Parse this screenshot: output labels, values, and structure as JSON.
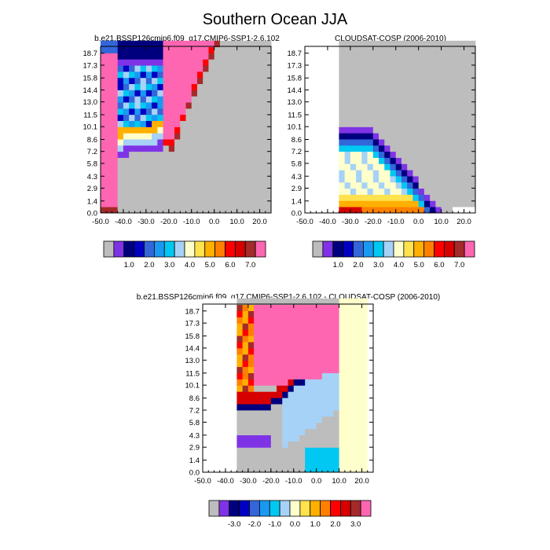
{
  "figure_title": "Southern Ocean JJA",
  "colors": {
    "missing": "#bdbdbd",
    "frame": "#000000",
    "palette": [
      "#7f33e6",
      "#00007f",
      "#0000c2",
      "#3366d9",
      "#1a99f2",
      "#00c8f2",
      "#a6d2f7",
      "#ffffcc",
      "#ffe24d",
      "#ffb000",
      "#ff8000",
      "#ff0000",
      "#d60000",
      "#a52a2a",
      "#ff66b2"
    ]
  },
  "chart_data": [
    {
      "id": "model",
      "type": "heatmap",
      "title": "b.e21.BSSP126cmip6.f09_g17.CMIP6-SSP1-2.6.102",
      "x_ticks": [
        "-50.0",
        "-40.0",
        "-30.0",
        "-20.0",
        "-10.0",
        "0.0",
        "10.0",
        "20.0"
      ],
      "y_ticks": [
        "0.0",
        "1.4",
        "2.9",
        "4.3",
        "5.8",
        "7.2",
        "8.6",
        "10.1",
        "11.5",
        "13.0",
        "14.4",
        "15.8",
        "17.3",
        "18.7"
      ],
      "xlim": [
        -50,
        25
      ],
      "ylim": [
        0.0,
        19.5
      ],
      "colorbar_labels": [
        "1.0",
        "2.0",
        "3.0",
        "4.0",
        "5.0",
        "6.0",
        "7.0"
      ],
      "colorbar_label_positions": [
        1.5,
        3.5,
        5.5,
        7.5,
        9.5,
        11.5,
        13.5
      ],
      "grid": {
        "x0": -47.5,
        "dx": 2.5,
        "y0": 0.0,
        "dy": 0.72,
        "rows": [
          [
            "a",
            0,
            0
          ],
          [
            "c",
            0,
            1,
            0,
            0,
            0,
            0,
            0,
            0,
            0,
            0,
            0,
            0,
            0,
            0,
            0,
            0,
            0,
            0,
            0,
            0,
            0,
            0,
            0,
            0,
            0,
            0,
            0,
            0,
            0,
            0
          ],
          [
            "c",
            0,
            1,
            0,
            0,
            0,
            0,
            0,
            0,
            0,
            0,
            0,
            0,
            0,
            0,
            0,
            0,
            0,
            0,
            0,
            0,
            0,
            0,
            0,
            0,
            0,
            0,
            0,
            0,
            0,
            0
          ],
          [
            "c",
            0,
            1,
            0,
            0,
            0,
            0,
            0,
            0,
            0,
            0,
            0,
            0,
            0,
            0,
            0,
            0,
            0,
            0,
            0,
            0,
            0,
            0,
            0,
            0,
            0,
            0,
            0,
            0,
            0,
            0
          ],
          [
            "c",
            0,
            1,
            0,
            0,
            0,
            0,
            0,
            0,
            0,
            0,
            0,
            0,
            0,
            0,
            0,
            0,
            0,
            0,
            0,
            0,
            0,
            0,
            0,
            0,
            0,
            0,
            0,
            0,
            0,
            0
          ],
          [
            "c",
            0,
            1,
            0,
            0,
            0,
            0,
            0,
            0,
            0,
            0,
            0,
            0,
            0,
            0,
            0,
            0,
            0,
            0,
            0,
            0,
            0,
            0,
            0,
            0,
            0,
            0,
            0,
            0,
            0,
            0
          ],
          [
            "c",
            0,
            1,
            0,
            0,
            0,
            0,
            0,
            0,
            0,
            0,
            0,
            0,
            0,
            0,
            0,
            0,
            0,
            0,
            0,
            0,
            0,
            0,
            0,
            0,
            0,
            0,
            0,
            0,
            0,
            0
          ],
          [
            "c",
            0,
            1,
            0,
            0,
            0,
            0,
            0,
            0,
            0,
            0,
            0,
            0,
            0,
            0,
            0,
            0,
            0,
            0,
            0,
            0,
            0,
            0,
            0,
            0,
            0,
            0,
            0,
            0,
            0,
            0
          ],
          [
            "c",
            0,
            1,
            0,
            0,
            0,
            0,
            0,
            0,
            0,
            0,
            0,
            0,
            0,
            0,
            0,
            0,
            0,
            0,
            0,
            0,
            0,
            0,
            0,
            0,
            0,
            0,
            0,
            0,
            0,
            0
          ],
          [
            "c",
            0,
            1,
            0,
            0,
            0,
            0,
            0,
            0,
            0,
            0,
            0,
            0,
            0,
            0,
            0,
            0,
            0,
            0,
            0,
            0,
            0,
            0,
            0,
            0,
            0,
            0,
            0,
            0,
            0,
            0
          ],
          [
            "c",
            0,
            1,
            0,
            0,
            0,
            0,
            0,
            0,
            0,
            0,
            0,
            0,
            0,
            0,
            0,
            0,
            0,
            0,
            0,
            0,
            0,
            0,
            0,
            0,
            0,
            0,
            0,
            0,
            0,
            0
          ],
          [
            "c",
            0,
            1,
            0,
            0,
            0,
            0,
            0,
            0,
            0,
            0,
            0,
            0,
            0,
            0,
            0,
            0,
            0,
            0,
            0,
            0,
            0,
            0,
            0,
            0,
            0,
            0,
            0,
            0,
            0,
            0
          ],
          [
            "c",
            0,
            1,
            0,
            0,
            0,
            0,
            0,
            0,
            0,
            0,
            0,
            0,
            0,
            0,
            0,
            0,
            0,
            0,
            0,
            0,
            0,
            0,
            0,
            0,
            0,
            0,
            0,
            0,
            0,
            0
          ],
          [
            "c",
            0,
            1,
            0,
            0,
            0,
            0,
            0,
            0,
            0,
            0,
            0,
            0,
            0,
            0,
            0,
            0,
            0,
            0,
            0,
            0,
            0,
            0,
            0,
            0,
            0,
            0,
            0,
            0,
            0,
            0
          ],
          [
            "c",
            0,
            1,
            0,
            0,
            0,
            0,
            0,
            0,
            0,
            0,
            0,
            0,
            0,
            0,
            0,
            0,
            0,
            0,
            0,
            0,
            0,
            0,
            0,
            0,
            0,
            0,
            0,
            0,
            0,
            0
          ]
        ]
      },
      "cells": [
        {
          "x": -47.5,
          "y": 0.0,
          "v": 14
        },
        {
          "x": -47.5,
          "y": 0.72,
          "v": 14
        },
        {
          "x": -47.5,
          "y": 1.44,
          "v": 14
        },
        {
          "x": -47.5,
          "y": 2.16,
          "v": 14
        },
        {
          "x": -47.5,
          "y": 2.88,
          "v": 14
        },
        {
          "x": -47.5,
          "y": 3.6,
          "v": 14
        },
        {
          "x": -47.5,
          "y": 4.32,
          "v": 14
        },
        {
          "x": -47.5,
          "y": 5.04,
          "v": 14
        },
        {
          "x": -47.5,
          "y": 5.76,
          "v": 14
        },
        {
          "x": -47.5,
          "y": 6.48,
          "v": 14
        },
        {
          "x": -47.5,
          "y": 7.2,
          "v": 14
        },
        {
          "x": -47.5,
          "y": 7.92,
          "v": 14
        },
        {
          "x": -47.5,
          "y": 8.64,
          "v": 14
        },
        {
          "x": -47.5,
          "y": 9.36,
          "v": 14
        },
        {
          "x": -47.5,
          "y": 10.08,
          "v": 14
        },
        {
          "x": -47.5,
          "y": 10.8,
          "v": 14
        },
        {
          "x": -47.5,
          "y": 11.52,
          "v": 14
        },
        {
          "x": -47.5,
          "y": 12.24,
          "v": 14
        },
        {
          "x": -47.5,
          "y": 12.96,
          "v": 14
        },
        {
          "x": -47.5,
          "y": 13.68,
          "v": 14
        },
        {
          "x": -47.5,
          "y": 14.4,
          "v": 14
        },
        {
          "x": -47.5,
          "y": 15.12,
          "v": 14
        },
        {
          "x": -47.5,
          "y": 15.84,
          "v": 14
        },
        {
          "x": -47.5,
          "y": 16.56,
          "v": 14
        },
        {
          "x": -47.5,
          "y": 17.28,
          "v": 13
        },
        {
          "x": -47.5,
          "y": 18.0,
          "v": 6
        },
        {
          "x": -47.5,
          "y": 18.72,
          "v": 5
        }
      ]
    },
    {
      "id": "obs",
      "type": "heatmap",
      "title": "CLOUDSAT-COSP (2006-2010)",
      "x_ticks": [
        "-50.0",
        "-40.0",
        "-30.0",
        "-20.0",
        "-10.0",
        "0.0",
        "10.0",
        "20.0"
      ],
      "y_ticks": [
        "0.0",
        "1.4",
        "2.9",
        "4.3",
        "5.8",
        "7.2",
        "8.6",
        "10.1",
        "11.5",
        "13.0",
        "14.4",
        "15.8",
        "17.3",
        "18.7"
      ],
      "xlim": [
        -50,
        25
      ],
      "ylim": [
        0.0,
        19.5
      ],
      "colorbar_labels": [
        "1.0",
        "2.0",
        "3.0",
        "4.0",
        "5.0",
        "6.0",
        "7.0"
      ],
      "colorbar_label_positions": [
        1.5,
        3.5,
        5.5,
        7.5,
        9.5,
        11.5,
        13.5
      ]
    },
    {
      "id": "diff",
      "type": "heatmap",
      "title": "b.e21.BSSP126cmip6.f09_g17.CMIP6-SSP1-2.6.102 - CLOUDSAT-COSP (2006-2010)",
      "x_ticks": [
        "-50.0",
        "-40.0",
        "-30.0",
        "-20.0",
        "-10.0",
        "0.0",
        "10.0",
        "20.0"
      ],
      "y_ticks": [
        "0.0",
        "1.4",
        "2.9",
        "4.3",
        "5.8",
        "7.2",
        "8.6",
        "10.1",
        "11.5",
        "13.0",
        "14.4",
        "15.8",
        "17.3",
        "18.7"
      ],
      "xlim": [
        -50,
        25
      ],
      "ylim": [
        0.0,
        19.5
      ],
      "colorbar_labels": [
        "-3.0",
        "-2.0",
        "-1.0",
        "0.0",
        "1.0",
        "2.0",
        "3.0"
      ],
      "colorbar_label_positions": [
        1.5,
        3.5,
        5.5,
        7.5,
        9.5,
        11.5,
        13.5
      ]
    }
  ]
}
